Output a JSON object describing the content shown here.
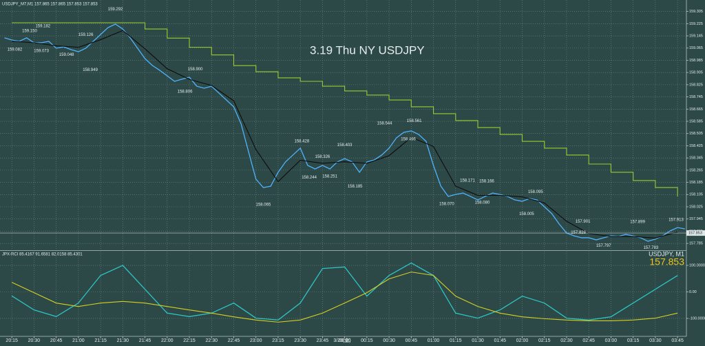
{
  "chart_data": [
    {
      "type": "line",
      "header": "USDJPY_M7,M1 157.865 157.865 157.853 157.853",
      "title": "3.19 Thu NY USDJPY",
      "xlim": [
        "20:07",
        "03:51"
      ],
      "xticks": [
        "20:15",
        "20:30",
        "20:45",
        "21:00",
        "21:15",
        "21:30",
        "21:45",
        "22:00",
        "22:15",
        "22:30",
        "22:45",
        "23:00",
        "23:15",
        "23:30",
        "23:45",
        "00:00",
        "00:15",
        "00:30",
        "00:45",
        "01:00",
        "01:15",
        "01:30",
        "01:45",
        "02:00",
        "02:15",
        "02:30",
        "02:45",
        "03:00",
        "03:15",
        "03:30",
        "03:45"
      ],
      "date_label": "3/20(金)",
      "ylim": [
        157.745,
        159.38
      ],
      "yticks": [
        159.305,
        159.225,
        159.145,
        159.065,
        158.985,
        158.905,
        158.825,
        158.745,
        158.665,
        158.585,
        158.505,
        158.425,
        158.345,
        158.265,
        158.185,
        158.105,
        158.025,
        157.945,
        157.865,
        157.785
      ],
      "grid": true,
      "current_price": 157.853,
      "series": [
        {
          "color": "#4fb3ff",
          "x": [
            "20:10",
            "20:15",
            "20:20",
            "20:25",
            "20:30",
            "20:35",
            "20:40",
            "20:45",
            "20:50",
            "20:55",
            "21:00",
            "21:05",
            "21:10",
            "21:15",
            "21:20",
            "21:25",
            "21:30",
            "21:35",
            "21:40",
            "21:45",
            "21:50",
            "21:55",
            "22:00",
            "22:05",
            "22:10",
            "22:15",
            "22:20",
            "22:25",
            "22:30",
            "22:35",
            "22:40",
            "22:45",
            "22:50",
            "22:55",
            "23:00",
            "23:05",
            "23:10",
            "23:15",
            "23:20",
            "23:25",
            "23:30",
            "23:35",
            "23:40",
            "23:45",
            "23:50",
            "23:55",
            "00:00",
            "00:05",
            "00:10",
            "00:15",
            "00:20",
            "00:25",
            "00:30",
            "00:35",
            "00:40",
            "00:45",
            "00:50",
            "00:55",
            "01:00",
            "01:05",
            "01:10",
            "01:15",
            "01:20",
            "01:25",
            "01:30",
            "01:35",
            "01:40",
            "01:45",
            "01:50",
            "01:55",
            "02:00",
            "02:05",
            "02:10",
            "02:15",
            "02:20",
            "02:25",
            "02:30",
            "02:35",
            "02:40",
            "02:45",
            "02:50",
            "02:55",
            "03:00",
            "03:05",
            "03:10",
            "03:15",
            "03:20",
            "03:25",
            "03:30",
            "03:35",
            "03:40",
            "03:45",
            "03:50"
          ],
          "values": [
            159.132,
            159.118,
            159.109,
            159.132,
            159.1,
            159.1,
            159.109,
            159.064,
            159.073,
            159.055,
            159.041,
            159.064,
            159.109,
            159.154,
            159.199,
            159.222,
            159.19,
            159.132,
            159.064,
            158.996,
            158.951,
            158.919,
            158.883,
            158.847,
            158.861,
            158.874,
            158.815,
            158.802,
            158.815,
            158.77,
            158.725,
            158.68,
            158.567,
            158.386,
            158.206,
            158.151,
            158.16,
            158.251,
            158.319,
            158.364,
            158.409,
            158.296,
            158.273,
            158.296,
            158.273,
            158.319,
            158.341,
            158.319,
            158.251,
            158.319,
            158.332,
            158.364,
            158.409,
            158.477,
            158.513,
            158.522,
            158.499,
            158.454,
            158.296,
            158.16,
            158.093,
            158.106,
            158.115,
            158.093,
            158.07,
            158.093,
            158.115,
            158.106,
            158.093,
            158.07,
            158.061,
            158.079,
            158.07,
            158.025,
            157.98,
            157.912,
            157.853,
            157.835,
            157.822,
            157.822,
            157.808,
            157.822,
            157.835,
            157.831,
            157.844,
            157.835,
            157.822,
            157.799,
            157.813,
            157.835,
            157.867,
            157.889,
            157.88
          ]
        },
        {
          "color": "#0d0d0d",
          "x": [
            "20:15",
            "20:30",
            "20:45",
            "21:00",
            "21:15",
            "21:30",
            "21:45",
            "22:00",
            "22:15",
            "22:30",
            "22:45",
            "23:00",
            "23:15",
            "23:30",
            "23:45",
            "00:00",
            "00:15",
            "00:30",
            "00:45",
            "01:00",
            "01:15",
            "01:30",
            "01:45",
            "02:00",
            "02:15",
            "02:30",
            "02:45",
            "03:00",
            "03:15",
            "03:30",
            "03:45"
          ],
          "values": [
            159.11,
            159.1,
            159.08,
            159.07,
            159.12,
            159.18,
            159.06,
            158.93,
            158.86,
            158.82,
            158.72,
            158.4,
            158.19,
            158.33,
            158.31,
            158.32,
            158.31,
            158.36,
            158.48,
            158.42,
            158.16,
            158.1,
            158.1,
            158.09,
            158.05,
            157.93,
            157.85,
            157.83,
            157.83,
            157.82,
            157.86
          ]
        },
        {
          "color": "#9acd32",
          "step": true,
          "x": [
            "20:15",
            "21:30",
            "21:45",
            "22:00",
            "22:15",
            "22:30",
            "22:45",
            "23:00",
            "23:15",
            "23:30",
            "23:45",
            "00:00",
            "00:15",
            "00:30",
            "00:45",
            "01:00",
            "01:15",
            "01:30",
            "01:45",
            "02:00",
            "02:15",
            "02:30",
            "02:45",
            "03:00",
            "03:15",
            "03:30",
            "03:45"
          ],
          "values": [
            159.231,
            159.231,
            159.19,
            159.13,
            159.07,
            159.02,
            158.95,
            158.91,
            158.87,
            158.847,
            158.815,
            158.784,
            158.757,
            158.725,
            158.68,
            158.635,
            158.59,
            158.544,
            158.499,
            158.454,
            158.409,
            158.364,
            158.305,
            158.251,
            158.197,
            158.151,
            158.093
          ]
        }
      ],
      "annotations": [
        {
          "x": "21:25",
          "value": 159.292,
          "label": "159.292"
        },
        {
          "x": "20:27",
          "value": 159.15,
          "label": "159.150"
        },
        {
          "x": "20:36",
          "value": 159.182,
          "label": "159.182"
        },
        {
          "x": "20:17",
          "value": 159.082,
          "label": "159.082"
        },
        {
          "x": "20:35",
          "value": 159.073,
          "label": "159.073"
        },
        {
          "x": "21:05",
          "value": 159.126,
          "label": "159.126"
        },
        {
          "x": "20:52",
          "value": 159.048,
          "label": "159.048"
        },
        {
          "x": "21:08",
          "value": 158.949,
          "label": "158.949"
        },
        {
          "x": "22:19",
          "value": 158.9,
          "label": "158.900"
        },
        {
          "x": "22:12",
          "value": 158.806,
          "label": "158.806"
        },
        {
          "x": "23:05",
          "value": 158.065,
          "label": "158.065"
        },
        {
          "x": "23:31",
          "value": 158.428,
          "label": "158.428"
        },
        {
          "x": "23:36",
          "value": 158.244,
          "label": "158.244"
        },
        {
          "x": "23:45",
          "value": 158.326,
          "label": "158.326"
        },
        {
          "x": "23:50",
          "value": 158.251,
          "label": "158.251"
        },
        {
          "x": "00:00",
          "value": 158.403,
          "label": "158.403"
        },
        {
          "x": "00:07",
          "value": 158.185,
          "label": "158.185"
        },
        {
          "x": "00:27",
          "value": 158.544,
          "label": "158.544"
        },
        {
          "x": "00:47",
          "value": 158.561,
          "label": "158.561"
        },
        {
          "x": "00:43",
          "value": 158.496,
          "label": "158.496"
        },
        {
          "x": "01:09",
          "value": 158.07,
          "label": "158.070"
        },
        {
          "x": "01:23",
          "value": 158.171,
          "label": "158.171"
        },
        {
          "x": "01:33",
          "value": 158.08,
          "label": "158.080"
        },
        {
          "x": "01:36",
          "value": 158.166,
          "label": "158.166"
        },
        {
          "x": "02:03",
          "value": 158.005,
          "label": "158.005"
        },
        {
          "x": "02:09",
          "value": 158.095,
          "label": "158.095"
        },
        {
          "x": "02:41",
          "value": 157.901,
          "label": "157.901"
        },
        {
          "x": "02:38",
          "value": 157.828,
          "label": "157.828"
        },
        {
          "x": "02:55",
          "value": 157.797,
          "label": "157.797"
        },
        {
          "x": "03:18",
          "value": 157.899,
          "label": "157.899"
        },
        {
          "x": "03:27",
          "value": 157.783,
          "label": "157.783"
        },
        {
          "x": "03:44",
          "value": 157.913,
          "label": "157.913"
        }
      ]
    },
    {
      "type": "line",
      "header": "JPX-RCI 85.4167 91.6581 82.0158 85.4301",
      "symbol": "USDJPY, M1",
      "ylim": [
        -165,
        152
      ],
      "yticks": [
        {
          "value": 100,
          "label": "100.0000"
        },
        {
          "value": 0,
          "label": "0.00"
        },
        {
          "value": -100,
          "label": "-100.0000"
        }
      ],
      "grid": true,
      "series": [
        {
          "color": "#2ec4c4",
          "x": [
            "20:15",
            "20:30",
            "20:45",
            "21:00",
            "21:15",
            "21:30",
            "21:45",
            "22:00",
            "22:15",
            "22:30",
            "22:45",
            "23:00",
            "23:15",
            "23:30",
            "23:45",
            "00:00",
            "00:15",
            "00:30",
            "00:45",
            "01:00",
            "01:15",
            "01:30",
            "01:45",
            "02:00",
            "02:15",
            "02:30",
            "02:45",
            "03:00",
            "03:15",
            "03:30",
            "03:45"
          ],
          "values": [
            -15,
            -68,
            -93,
            -42,
            62,
            100,
            10,
            -80,
            -93,
            -80,
            -42,
            -99,
            -106,
            -42,
            88,
            94,
            -16,
            62,
            109,
            62,
            -80,
            -99,
            -68,
            -16,
            -42,
            -99,
            -106,
            -94,
            -42,
            10,
            62
          ]
        },
        {
          "color": "#d8d020",
          "x": [
            "20:15",
            "20:30",
            "20:45",
            "21:00",
            "21:15",
            "21:30",
            "21:45",
            "22:00",
            "22:15",
            "22:30",
            "22:45",
            "23:00",
            "23:15",
            "23:30",
            "23:45",
            "00:00",
            "00:15",
            "00:30",
            "00:45",
            "01:00",
            "01:15",
            "01:30",
            "01:45",
            "02:00",
            "02:15",
            "02:30",
            "02:45",
            "03:00",
            "03:15",
            "03:30",
            "03:45"
          ],
          "values": [
            36,
            -3,
            -42,
            -55,
            -42,
            -36,
            -42,
            -55,
            -68,
            -80,
            -94,
            -106,
            -114,
            -106,
            -80,
            -42,
            -3,
            49,
            75,
            62,
            -16,
            -55,
            -80,
            -94,
            -101,
            -106,
            -109,
            -109,
            -106,
            -99,
            -80
          ]
        }
      ]
    }
  ]
}
